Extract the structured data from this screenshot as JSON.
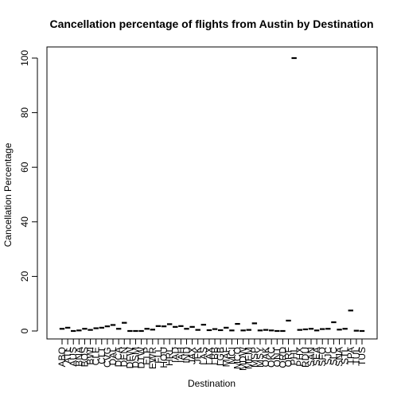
{
  "chart_data": {
    "type": "box",
    "title": "Cancellation percentage of flights from Austin by Destination",
    "xlabel": "Destination",
    "ylabel": "Cancellation Percentage",
    "ylim": [
      0,
      100
    ],
    "yticks": [
      0,
      20,
      40,
      60,
      80,
      100
    ],
    "grid": false,
    "categories": [
      "ABQ",
      "ATL",
      "AUS",
      "BNA",
      "BOS",
      "BWI",
      "CLE",
      "CLT",
      "CVG",
      "DAL",
      "DCA",
      "DEN",
      "DFW",
      "DSM",
      "DTW",
      "ELP",
      "EWR",
      "FLL",
      "HOU",
      "HRL",
      "IAD",
      "IAH",
      "IND",
      "JAX",
      "JFK",
      "LAS",
      "LAX",
      "LBB",
      "LGB",
      "MAF",
      "MCI",
      "MCO",
      "MDW",
      "MEM",
      "MSP",
      "MSY",
      "OAK",
      "OKC",
      "ONT",
      "ORD",
      "ORF",
      "PHL",
      "PHX",
      "RDU",
      "SAN",
      "SEA",
      "SFO",
      "SJC",
      "SLC",
      "SNA",
      "STL",
      "TPA",
      "TUL",
      "TUS"
    ],
    "values": [
      0.8,
      1.2,
      0,
      0.2,
      0.8,
      0.4,
      1.0,
      1.2,
      1.7,
      2.2,
      0.8,
      3.0,
      0,
      0,
      0,
      0.8,
      0.5,
      1.8,
      1.7,
      2.5,
      1.5,
      1.8,
      0.8,
      1.5,
      0.4,
      2.3,
      0.3,
      0.7,
      0.3,
      1.2,
      0.2,
      2.6,
      0.2,
      0.4,
      2.8,
      0.2,
      0.4,
      0.2,
      0,
      0,
      3.8,
      100,
      0.4,
      0.6,
      0.8,
      0.2,
      0.7,
      0.8,
      3.2,
      0.5,
      0.8,
      7.5,
      0.1,
      0
    ]
  }
}
